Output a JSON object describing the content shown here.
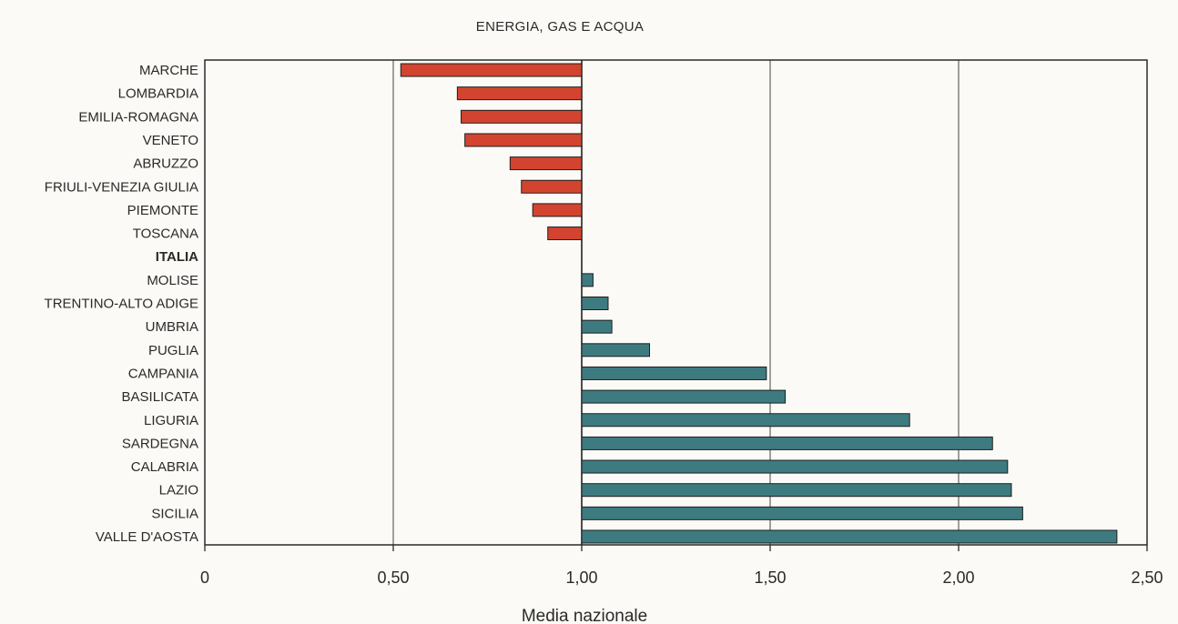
{
  "chart_data": {
    "type": "bar",
    "orientation": "horizontal",
    "title": "ENERGIA, GAS E ACQUA",
    "xlabel": "Media nazionale",
    "ylabel": "",
    "xlim": [
      0,
      2.5
    ],
    "baseline": 1.0,
    "reference_category": "ITALIA",
    "xticks": [
      0,
      0.5,
      1.0,
      1.5,
      2.0,
      2.5
    ],
    "xtick_labels": [
      "0",
      "0,50",
      "1,00",
      "1,50",
      "2,00",
      "2,50"
    ],
    "grid": "vertical",
    "colors": {
      "below_average": "#d2442f",
      "above_average": "#3d7b80"
    },
    "categories": [
      "MARCHE",
      "LOMBARDIA",
      "EMILIA-ROMAGNA",
      "VENETO",
      "ABRUZZO",
      "FRIULI-VENEZIA GIULIA",
      "PIEMONTE",
      "TOSCANA",
      "ITALIA",
      "MOLISE",
      "TRENTINO-ALTO ADIGE",
      "UMBRIA",
      "PUGLIA",
      "CAMPANIA",
      "BASILICATA",
      "LIGURIA",
      "SARDEGNA",
      "CALABRIA",
      "LAZIO",
      "SICILIA",
      "VALLE D'AOSTA"
    ],
    "values": [
      0.52,
      0.67,
      0.68,
      0.69,
      0.81,
      0.84,
      0.87,
      0.91,
      1.0,
      1.03,
      1.07,
      1.08,
      1.18,
      1.49,
      1.54,
      1.87,
      2.09,
      2.13,
      2.14,
      2.17,
      2.42
    ]
  }
}
